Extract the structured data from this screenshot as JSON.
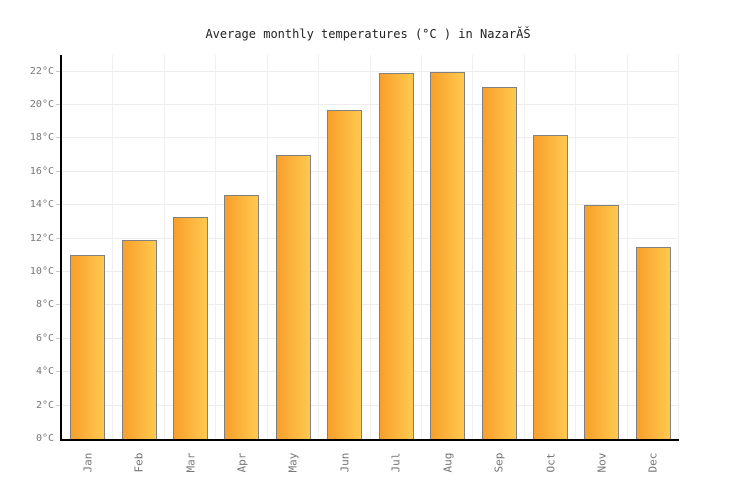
{
  "title": "Average monthly temperatures (°C ) in NazarĂŠ",
  "colors": {
    "background": "#FFFFFF",
    "bar_gradient_start": "#F89F2B",
    "bar_gradient_end": "#FFC94F",
    "bar_border": "#808080",
    "axis_line": "#000000",
    "h_gridline": "#EDEDED",
    "v_gridline": "#F0F0F0",
    "label_text": "#777777",
    "title_text": "#222222"
  },
  "chart_data": {
    "type": "bar",
    "title": "Average monthly temperatures (°C ) in NazarĂŠ",
    "categories": [
      "Jan",
      "Feb",
      "Mar",
      "Apr",
      "May",
      "Jun",
      "Jul",
      "Aug",
      "Sep",
      "Oct",
      "Nov",
      "Dec"
    ],
    "values": [
      11.0,
      11.9,
      13.3,
      14.6,
      17.0,
      19.7,
      21.9,
      22.0,
      21.1,
      18.2,
      14.0,
      11.5
    ],
    "xlabel": "",
    "ylabel": "",
    "ylim": [
      0,
      23
    ],
    "ytick_step": 2,
    "ytick_labels": [
      "0°C",
      "2°C",
      "4°C",
      "6°C",
      "8°C",
      "10°C",
      "12°C",
      "14°C",
      "16°C",
      "18°C",
      "20°C",
      "22°C"
    ],
    "grid": true,
    "legend": "none",
    "x_label_rotation_deg": -90
  }
}
